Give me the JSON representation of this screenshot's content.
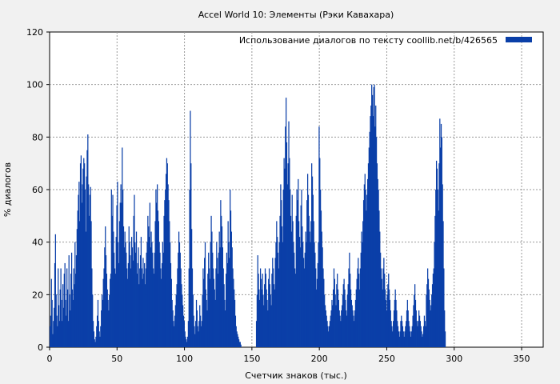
{
  "chart_data": {
    "type": "bar",
    "title": "Accel World 10: Элементы (Рэки Кавахара)",
    "xlabel": "Счетчик знаков (тыс.)",
    "ylabel": "% диалогов",
    "xlim": [
      0,
      366
    ],
    "ylim": [
      0,
      120
    ],
    "xticks": [
      0,
      50,
      100,
      150,
      200,
      250,
      300,
      350
    ],
    "yticks": [
      0,
      20,
      40,
      60,
      80,
      100,
      120
    ],
    "grid": true,
    "legend_position": "top-right",
    "series": [
      {
        "name": "Использование диалогов по тексту  coollib.net/b/426565",
        "color": "#0a3fa8",
        "x_step": 0.5,
        "values": [
          8,
          12,
          26,
          18,
          5,
          10,
          15,
          32,
          43,
          20,
          12,
          8,
          30,
          16,
          10,
          22,
          30,
          18,
          10,
          24,
          15,
          28,
          32,
          18,
          12,
          30,
          22,
          10,
          35,
          20,
          14,
          28,
          36,
          22,
          18,
          30,
          24,
          40,
          28,
          35,
          45,
          52,
          58,
          63,
          48,
          70,
          73,
          55,
          62,
          68,
          72,
          70,
          60,
          44,
          65,
          75,
          81,
          62,
          50,
          58,
          61,
          48,
          30,
          20,
          10,
          6,
          3,
          2,
          4,
          8,
          12,
          18,
          10,
          6,
          4,
          8,
          14,
          20,
          18,
          26,
          30,
          38,
          46,
          35,
          28,
          22,
          18,
          14,
          20,
          26,
          28,
          60,
          50,
          58,
          44,
          36,
          30,
          28,
          42,
          54,
          63,
          40,
          32,
          48,
          55,
          62,
          55,
          76,
          60,
          46,
          38,
          44,
          40,
          36,
          30,
          26,
          32,
          46,
          40,
          35,
          30,
          42,
          38,
          33,
          50,
          58,
          40,
          36,
          44,
          28,
          32,
          38,
          24,
          30,
          35,
          42,
          30,
          26,
          34,
          28,
          32,
          24,
          30,
          36,
          40,
          50,
          46,
          42,
          55,
          38,
          44,
          40,
          36,
          30,
          28,
          36,
          48,
          60,
          55,
          62,
          52,
          48,
          40,
          36,
          30,
          26,
          32,
          40,
          36,
          50,
          56,
          60,
          66,
          72,
          70,
          62,
          56,
          48,
          40,
          32,
          26,
          18,
          14,
          10,
          8,
          12,
          16,
          20,
          24,
          30,
          36,
          44,
          40,
          36,
          30,
          24,
          20,
          16,
          12,
          10,
          6,
          4,
          3,
          2,
          4,
          10,
          30,
          60,
          90,
          70,
          45,
          30,
          20,
          12,
          8,
          5,
          10,
          18,
          14,
          8,
          6,
          10,
          16,
          12,
          8,
          10,
          20,
          30,
          26,
          34,
          40,
          22,
          18,
          14,
          28,
          36,
          30,
          26,
          40,
          50,
          44,
          36,
          30,
          26,
          22,
          18,
          30,
          40,
          34,
          28,
          36,
          44,
          38,
          56,
          50,
          46,
          38,
          30,
          24,
          18,
          14,
          28,
          36,
          32,
          48,
          40,
          34,
          60,
          52,
          44,
          38,
          30,
          26,
          22,
          18,
          12,
          8,
          6,
          5,
          4,
          3,
          2,
          2,
          1,
          0,
          0,
          0,
          0,
          0,
          0,
          0,
          0,
          0,
          0,
          0,
          0,
          0,
          0,
          0,
          0,
          0,
          0,
          0,
          0,
          0,
          0,
          10,
          20,
          35,
          28,
          22,
          18,
          30,
          26,
          22,
          28,
          20,
          16,
          24,
          30,
          28,
          22,
          18,
          14,
          26,
          30,
          24,
          20,
          16,
          28,
          34,
          30,
          24,
          22,
          34,
          40,
          48,
          42,
          36,
          30,
          40,
          50,
          62,
          56,
          46,
          40,
          60,
          72,
          68,
          84,
          95,
          78,
          62,
          70,
          86,
          72,
          60,
          50,
          44,
          58,
          48,
          40,
          36,
          30,
          28,
          50,
          60,
          56,
          64,
          48,
          42,
          38,
          54,
          60,
          46,
          40,
          34,
          30,
          36,
          44,
          40,
          56,
          66,
          58,
          50,
          44,
          40,
          48,
          70,
          65,
          58,
          48,
          40,
          36,
          30,
          22,
          26,
          32,
          40,
          84,
          72,
          60,
          52,
          44,
          38,
          30,
          26,
          20,
          16,
          14,
          12,
          10,
          8,
          6,
          8,
          10,
          12,
          14,
          18,
          16,
          22,
          30,
          26,
          20,
          16,
          24,
          28,
          22,
          18,
          14,
          12,
          10,
          14,
          16,
          20,
          24,
          26,
          22,
          18,
          14,
          12,
          20,
          24,
          30,
          36,
          28,
          22,
          18,
          16,
          14,
          12,
          10,
          14,
          18,
          22,
          26,
          30,
          34,
          28,
          22,
          30,
          36,
          44,
          40,
          48,
          56,
          62,
          66,
          60,
          52,
          58,
          64,
          70,
          76,
          82,
          88,
          92,
          100,
          96,
          88,
          99,
          100,
          84,
          92,
          80,
          70,
          64,
          60,
          52,
          44,
          36,
          30,
          26,
          22,
          30,
          34,
          28,
          22,
          18,
          14,
          20,
          24,
          28,
          22,
          18,
          14,
          10,
          8,
          6,
          10,
          14,
          18,
          22,
          18,
          14,
          10,
          8,
          6,
          4,
          6,
          10,
          12,
          10,
          8,
          6,
          4,
          6,
          8,
          10,
          14,
          18,
          14,
          10,
          8,
          6,
          4,
          6,
          8,
          12,
          16,
          20,
          24,
          18,
          14,
          10,
          8,
          10,
          14,
          12,
          10,
          8,
          6,
          4,
          5,
          8,
          12,
          10,
          8,
          20,
          24,
          30,
          26,
          22,
          18,
          14,
          16,
          20,
          24,
          28,
          30,
          40,
          50,
          60,
          71,
          68,
          60,
          52,
          70,
          87,
          76,
          85,
          80,
          62,
          48,
          30,
          14,
          6
        ]
      }
    ]
  }
}
